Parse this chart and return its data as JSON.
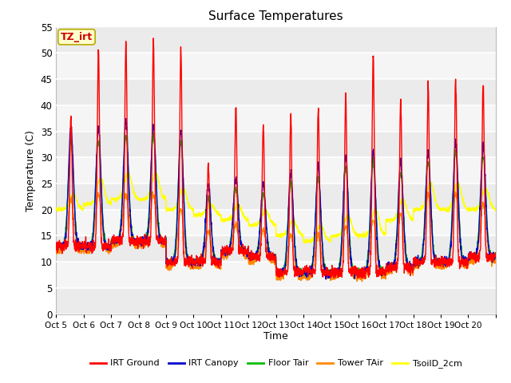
{
  "title": "Surface Temperatures",
  "xlabel": "Time",
  "ylabel": "Temperature (C)",
  "ylim": [
    0,
    55
  ],
  "yticks": [
    0,
    5,
    10,
    15,
    20,
    25,
    30,
    35,
    40,
    45,
    50,
    55
  ],
  "x_labels": [
    "Oct 5",
    "Oct 6",
    "Oct 7",
    "Oct 8",
    "Oct 9",
    "Oct 10",
    "Oct 11",
    "Oct 12",
    "Oct 13",
    "Oct 14",
    "Oct 15",
    "Oct 16",
    "Oct 17",
    "Oct 18",
    "Oct 19",
    "Oct 20"
  ],
  "legend_entries": [
    "IRT Ground",
    "IRT Canopy",
    "Floor Tair",
    "Tower TAir",
    "TsoilD_2cm"
  ],
  "colors": {
    "IRT Ground": "#ff0000",
    "IRT Canopy": "#0000cc",
    "Floor Tair": "#00bb00",
    "Tower TAir": "#ff8800",
    "TsoilD_2cm": "#ffff00"
  },
  "annotation_text": "TZ_irt",
  "annotation_bg": "#ffffcc",
  "annotation_border": "#bbaa00",
  "annotation_color": "#cc0000",
  "fig_bg": "#ffffff",
  "plot_bg": "#ffffff",
  "grid_color": "#e0e0e0",
  "title_fontsize": 11,
  "band_colors": [
    "#e8e8e8",
    "#f8f8f8"
  ]
}
